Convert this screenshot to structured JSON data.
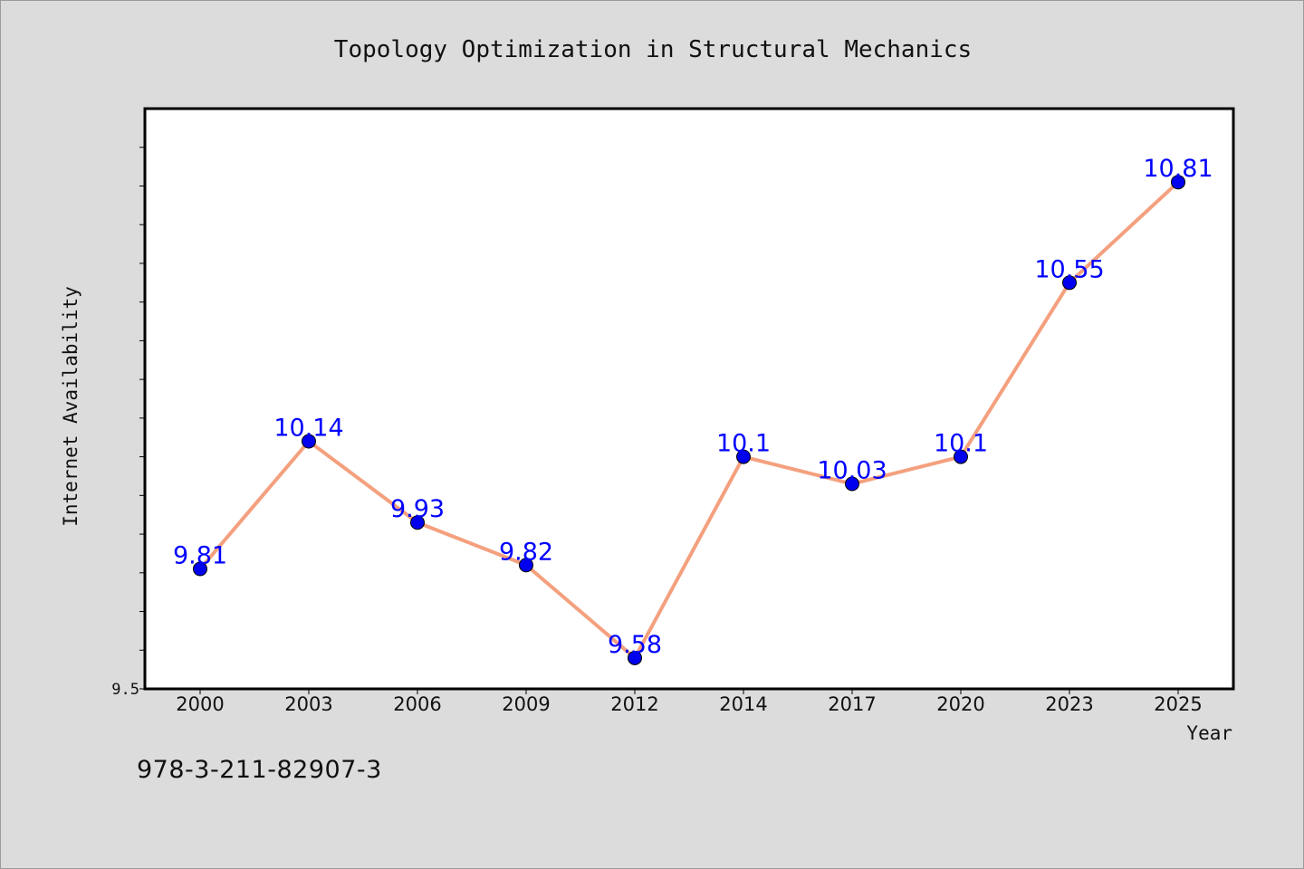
{
  "chart_data": {
    "type": "line",
    "title": "Topology Optimization in Structural Mechanics",
    "xlabel": "Year",
    "ylabel": "Internet Availability",
    "categories": [
      "2000",
      "2003",
      "2006",
      "2009",
      "2012",
      "2014",
      "2017",
      "2020",
      "2023",
      "2025"
    ],
    "values": [
      9.81,
      10.14,
      9.93,
      9.82,
      9.58,
      10.1,
      10.03,
      10.1,
      10.55,
      10.81
    ],
    "data_labels": [
      "9.81",
      "10.14",
      "9.93",
      "9.82",
      "9.58",
      "10.1",
      "10.03",
      "10.1",
      "10.55",
      "10.81"
    ],
    "ylim": [
      9.5,
      11.0
    ],
    "ytick_labels": [
      {
        "value": 9.5,
        "label": "9.5"
      }
    ],
    "grid": false,
    "legend": "none",
    "colors": {
      "line": "#f4a07e",
      "marker": "#0000ee",
      "data_label": "#0000ff",
      "plot_bg": "#ffffff",
      "page_bg": "#dcdcdc"
    }
  },
  "footer": {
    "isbn": "978-3-211-82907-3"
  }
}
